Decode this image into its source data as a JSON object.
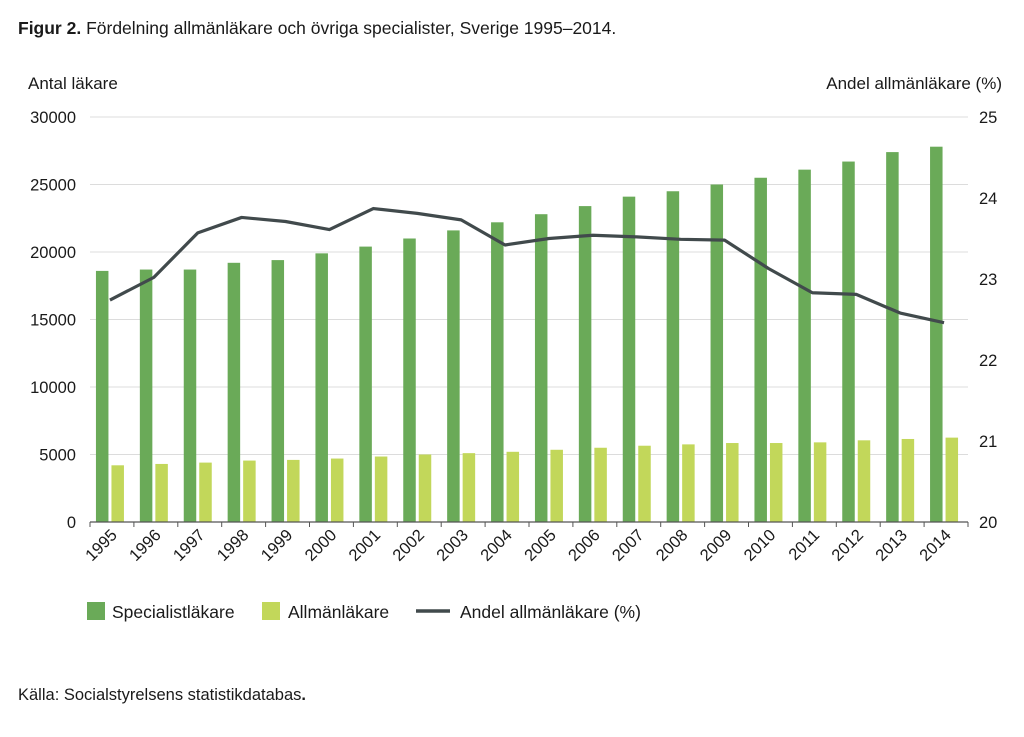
{
  "caption": {
    "figure_label": "Figur 2.",
    "text": " Fördelning allmänläkare och övriga specialister, Sverige 1995–2014."
  },
  "source": {
    "text": "Källa: Socialstyrelsens statistikdatabas",
    "trailing": "."
  },
  "colors": {
    "specialist": "#6aaa58",
    "allman": "#c2d75a",
    "line": "#414a4c",
    "grid": "#dcdcdc"
  },
  "chart_data": {
    "type": "bar",
    "title": "Fördelning allmänläkare och övriga specialister, Sverige 1995–2014",
    "xlabel": "",
    "ylabel": "Antal läkare",
    "y2label": "Andel allmänläkare (%)",
    "ylim": [
      0,
      30000
    ],
    "y2lim": [
      20,
      25
    ],
    "yticks": [
      "0",
      "5000",
      "10000",
      "15000",
      "20000",
      "25000",
      "30000"
    ],
    "y2ticks": [
      "20",
      "21",
      "22",
      "23",
      "24",
      "25"
    ],
    "grid": true,
    "legend_position": "bottom",
    "categories": [
      "1995",
      "1996",
      "1997",
      "1998",
      "1999",
      "2000",
      "2001",
      "2002",
      "2003",
      "2004",
      "2005",
      "2006",
      "2007",
      "2008",
      "2009",
      "2010",
      "2011",
      "2012",
      "2013",
      "2014"
    ],
    "series": [
      {
        "name": "Specialistläkare",
        "kind": "bar",
        "axis": "left",
        "values": [
          18600,
          18700,
          18700,
          19200,
          19400,
          19900,
          20400,
          21000,
          21600,
          22200,
          22800,
          23400,
          24100,
          24500,
          25000,
          25500,
          26100,
          26700,
          27400,
          27800
        ]
      },
      {
        "name": "Allmänläkare",
        "kind": "bar",
        "axis": "left",
        "values": [
          4200,
          4300,
          4400,
          4550,
          4600,
          4700,
          4850,
          5000,
          5100,
          5200,
          5350,
          5500,
          5650,
          5750,
          5850,
          5850,
          5900,
          6050,
          6150,
          6250
        ]
      },
      {
        "name": "Andel allmänläkare (%)",
        "kind": "line",
        "axis": "right",
        "values": [
          22.74,
          23.02,
          23.57,
          23.76,
          23.71,
          23.61,
          23.87,
          23.81,
          23.73,
          23.42,
          23.5,
          23.54,
          23.52,
          23.49,
          23.48,
          23.13,
          22.83,
          22.81,
          22.58,
          22.46
        ]
      }
    ]
  }
}
